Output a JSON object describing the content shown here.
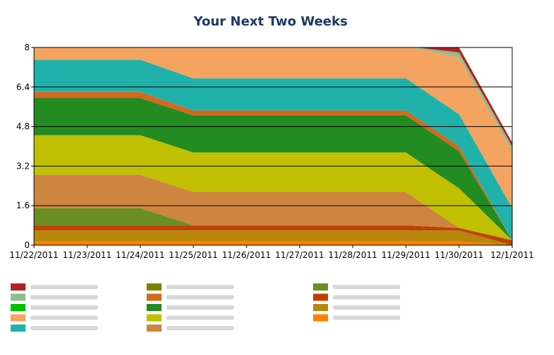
{
  "chart_data": {
    "type": "area",
    "stacked": true,
    "title": "Your Next Two Weeks",
    "xlabel": "",
    "ylabel": "",
    "categories": [
      "11/22/2011",
      "11/23/2011",
      "11/24/2011",
      "11/25/2011",
      "11/26/2011",
      "11/27/2011",
      "11/28/2011",
      "11/29/2011",
      "11/30/2011",
      "12/1/2011"
    ],
    "ylim": [
      0,
      8
    ],
    "yticks": [
      "0",
      "1.6",
      "3.2",
      "4.8",
      "6.4",
      "8"
    ],
    "grid": "horizontal",
    "legend_position": "bottom",
    "series": [
      {
        "color": "#ff8000",
        "values": [
          0.15,
          0.15,
          0.15,
          0.15,
          0.15,
          0.15,
          0.15,
          0.15,
          0.15,
          0.0
        ]
      },
      {
        "color": "#b8860b",
        "values": [
          0.45,
          0.45,
          0.45,
          0.45,
          0.45,
          0.45,
          0.45,
          0.45,
          0.45,
          0.0
        ]
      },
      {
        "color": "#c04000",
        "values": [
          0.2,
          0.2,
          0.2,
          0.2,
          0.2,
          0.2,
          0.2,
          0.2,
          0.1,
          0.2
        ]
      },
      {
        "color": "#6b8e23",
        "values": [
          0.7,
          0.7,
          0.7,
          0.0,
          0.0,
          0.0,
          0.0,
          0.0,
          0.0,
          0.0
        ]
      },
      {
        "color": "#cd853f",
        "values": [
          1.35,
          1.35,
          1.35,
          1.35,
          1.35,
          1.35,
          1.35,
          1.35,
          0.0,
          0.0
        ]
      },
      {
        "color": "#c0c000",
        "values": [
          1.6,
          1.6,
          1.6,
          1.6,
          1.6,
          1.6,
          1.6,
          1.6,
          1.6,
          0.0
        ]
      },
      {
        "color": "#228b22",
        "values": [
          1.5,
          1.5,
          1.5,
          1.5,
          1.5,
          1.5,
          1.5,
          1.5,
          1.5,
          0.0
        ]
      },
      {
        "color": "#808000",
        "values": [
          0.0,
          0.0,
          0.0,
          0.0,
          0.0,
          0.0,
          0.0,
          0.0,
          0.0,
          0.0
        ]
      },
      {
        "color": "#d2691e",
        "values": [
          0.25,
          0.25,
          0.25,
          0.2,
          0.2,
          0.2,
          0.2,
          0.2,
          0.2,
          0.0
        ]
      },
      {
        "color": "#20b2aa",
        "values": [
          1.3,
          1.3,
          1.3,
          1.3,
          1.3,
          1.3,
          1.3,
          1.3,
          1.3,
          1.3
        ]
      },
      {
        "color": "#f4a460",
        "values": [
          0.5,
          0.5,
          0.5,
          1.3,
          1.3,
          1.3,
          1.3,
          1.3,
          2.3,
          2.3
        ]
      },
      {
        "color": "#00c000",
        "values": [
          0.0,
          0.0,
          0.0,
          0.0,
          0.0,
          0.0,
          0.0,
          0.0,
          0.0,
          0.0
        ]
      },
      {
        "color": "#8fbc8f",
        "values": [
          0.0,
          0.0,
          0.0,
          0.0,
          0.0,
          0.0,
          0.0,
          0.0,
          0.2,
          0.2
        ]
      },
      {
        "color": "#b22222",
        "values": [
          0.0,
          0.0,
          0.0,
          0.0,
          0.0,
          0.0,
          0.0,
          0.0,
          0.2,
          0.15
        ]
      }
    ],
    "legend_columns": [
      [
        "#b22222",
        "#8fbc8f",
        "#00c000",
        "#f4a460",
        "#20b2aa"
      ],
      [
        "#808000",
        "#d2691e",
        "#228b22",
        "#c0c000",
        "#cd853f"
      ],
      [
        "#6b8e23",
        "#c04000",
        "#b8860b",
        "#ff8000"
      ]
    ]
  }
}
